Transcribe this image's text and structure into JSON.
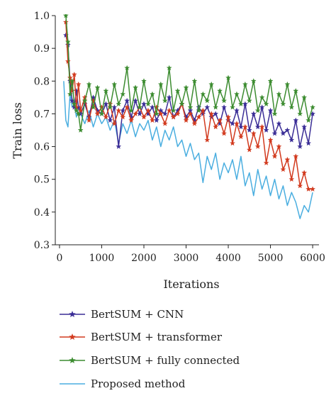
{
  "chart_data": {
    "type": "line",
    "title": "",
    "xlabel": "Iterations",
    "ylabel": "Train loss",
    "xlim": [
      -100,
      6150
    ],
    "ylim": [
      0.3,
      1.0
    ],
    "xticks": [
      0,
      1000,
      2000,
      3000,
      4000,
      5000,
      6000
    ],
    "xtick_labels": [
      "0",
      "1000",
      "2000",
      "3000",
      "4000",
      "5000",
      "6000"
    ],
    "yticks": [
      0.3,
      0.4,
      0.5,
      0.6,
      0.7,
      0.8,
      0.9,
      1.0
    ],
    "ytick_labels": [
      "0.3",
      "0.4",
      "0.5",
      "0.6",
      "0.7",
      "0.8",
      "0.9",
      "1.0"
    ],
    "grid": false,
    "legend_position": "below",
    "series": [
      {
        "name": "BertSUM + CNN",
        "color": "#3a2d96",
        "marker": "star",
        "x": [
          150,
          200,
          250,
          300,
          350,
          400,
          450,
          500,
          600,
          700,
          800,
          900,
          1000,
          1100,
          1200,
          1300,
          1400,
          1500,
          1600,
          1700,
          1800,
          1900,
          2000,
          2100,
          2200,
          2300,
          2400,
          2500,
          2600,
          2700,
          2800,
          2900,
          3000,
          3100,
          3200,
          3300,
          3400,
          3500,
          3600,
          3700,
          3800,
          3900,
          4000,
          4100,
          4200,
          4300,
          4400,
          4500,
          4600,
          4700,
          4800,
          4900,
          5000,
          5100,
          5200,
          5300,
          5400,
          5500,
          5600,
          5700,
          5800,
          5900,
          6000
        ],
        "y": [
          0.94,
          0.91,
          0.8,
          0.74,
          0.72,
          0.77,
          0.72,
          0.7,
          0.73,
          0.69,
          0.75,
          0.71,
          0.7,
          0.73,
          0.68,
          0.72,
          0.6,
          0.71,
          0.74,
          0.69,
          0.74,
          0.7,
          0.73,
          0.7,
          0.72,
          0.68,
          0.71,
          0.7,
          0.75,
          0.69,
          0.71,
          0.73,
          0.69,
          0.71,
          0.68,
          0.72,
          0.7,
          0.72,
          0.69,
          0.7,
          0.67,
          0.72,
          0.68,
          0.67,
          0.71,
          0.66,
          0.73,
          0.65,
          0.7,
          0.66,
          0.72,
          0.65,
          0.71,
          0.64,
          0.67,
          0.64,
          0.65,
          0.62,
          0.68,
          0.6,
          0.66,
          0.61,
          0.7
        ]
      },
      {
        "name": "BertSUM + transformer",
        "color": "#d23a1e",
        "marker": "star",
        "x": [
          150,
          200,
          250,
          300,
          350,
          400,
          450,
          500,
          600,
          700,
          800,
          900,
          1000,
          1100,
          1200,
          1300,
          1400,
          1500,
          1600,
          1700,
          1800,
          1900,
          2000,
          2100,
          2200,
          2300,
          2400,
          2500,
          2600,
          2700,
          2800,
          2900,
          3000,
          3100,
          3200,
          3300,
          3400,
          3500,
          3600,
          3700,
          3800,
          3900,
          4000,
          4100,
          4200,
          4300,
          4400,
          4500,
          4600,
          4700,
          4800,
          4900,
          5000,
          5100,
          5200,
          5300,
          5400,
          5500,
          5600,
          5700,
          5800,
          5900,
          6000
        ],
        "y": [
          0.98,
          0.86,
          0.81,
          0.77,
          0.82,
          0.72,
          0.79,
          0.71,
          0.75,
          0.68,
          0.74,
          0.7,
          0.72,
          0.69,
          0.73,
          0.67,
          0.71,
          0.69,
          0.72,
          0.68,
          0.7,
          0.72,
          0.69,
          0.71,
          0.68,
          0.72,
          0.7,
          0.67,
          0.71,
          0.69,
          0.7,
          0.73,
          0.68,
          0.7,
          0.67,
          0.69,
          0.71,
          0.62,
          0.7,
          0.66,
          0.68,
          0.64,
          0.69,
          0.61,
          0.67,
          0.63,
          0.66,
          0.59,
          0.64,
          0.6,
          0.66,
          0.55,
          0.62,
          0.57,
          0.6,
          0.53,
          0.56,
          0.5,
          0.57,
          0.48,
          0.52,
          0.47,
          0.47
        ]
      },
      {
        "name": "BertSUM + fully connected",
        "color": "#3c8c30",
        "marker": "star",
        "x": [
          150,
          200,
          250,
          300,
          350,
          400,
          450,
          500,
          600,
          700,
          800,
          900,
          1000,
          1100,
          1200,
          1300,
          1400,
          1500,
          1600,
          1700,
          1800,
          1900,
          2000,
          2100,
          2200,
          2300,
          2400,
          2500,
          2600,
          2700,
          2800,
          2900,
          3000,
          3100,
          3200,
          3300,
          3400,
          3500,
          3600,
          3700,
          3800,
          3900,
          4000,
          4100,
          4200,
          4300,
          4400,
          4500,
          4600,
          4700,
          4800,
          4900,
          5000,
          5100,
          5200,
          5300,
          5400,
          5500,
          5600,
          5700,
          5800,
          5900,
          6000
        ],
        "y": [
          1.0,
          0.92,
          0.76,
          0.8,
          0.73,
          0.71,
          0.7,
          0.65,
          0.74,
          0.79,
          0.72,
          0.78,
          0.7,
          0.77,
          0.72,
          0.79,
          0.73,
          0.76,
          0.84,
          0.71,
          0.78,
          0.72,
          0.8,
          0.73,
          0.76,
          0.7,
          0.79,
          0.74,
          0.84,
          0.71,
          0.77,
          0.73,
          0.78,
          0.72,
          0.8,
          0.71,
          0.76,
          0.74,
          0.79,
          0.72,
          0.77,
          0.74,
          0.81,
          0.72,
          0.76,
          0.73,
          0.79,
          0.74,
          0.8,
          0.71,
          0.75,
          0.73,
          0.8,
          0.7,
          0.76,
          0.73,
          0.79,
          0.72,
          0.77,
          0.7,
          0.75,
          0.68,
          0.72
        ]
      },
      {
        "name": "Proposed method",
        "color": "#4aaee0",
        "marker": "none",
        "x": [
          100,
          150,
          200,
          250,
          300,
          350,
          400,
          450,
          500,
          600,
          700,
          800,
          900,
          1000,
          1100,
          1200,
          1300,
          1400,
          1500,
          1600,
          1700,
          1800,
          1900,
          2000,
          2100,
          2200,
          2300,
          2400,
          2500,
          2600,
          2700,
          2800,
          2900,
          3000,
          3100,
          3200,
          3300,
          3400,
          3500,
          3600,
          3700,
          3800,
          3900,
          4000,
          4100,
          4200,
          4300,
          4400,
          4500,
          4600,
          4700,
          4800,
          4900,
          5000,
          5100,
          5200,
          5300,
          5400,
          5500,
          5600,
          5700,
          5800,
          5900,
          6000
        ],
        "y": [
          0.8,
          0.68,
          0.66,
          0.76,
          0.72,
          0.73,
          0.69,
          0.72,
          0.7,
          0.67,
          0.71,
          0.66,
          0.7,
          0.67,
          0.69,
          0.65,
          0.68,
          0.61,
          0.67,
          0.64,
          0.68,
          0.63,
          0.67,
          0.65,
          0.68,
          0.62,
          0.66,
          0.6,
          0.65,
          0.62,
          0.66,
          0.6,
          0.62,
          0.57,
          0.61,
          0.56,
          0.58,
          0.49,
          0.57,
          0.53,
          0.58,
          0.5,
          0.55,
          0.52,
          0.56,
          0.5,
          0.57,
          0.48,
          0.52,
          0.45,
          0.53,
          0.47,
          0.51,
          0.45,
          0.5,
          0.44,
          0.48,
          0.42,
          0.46,
          0.43,
          0.38,
          0.42,
          0.4,
          0.46
        ]
      }
    ]
  }
}
